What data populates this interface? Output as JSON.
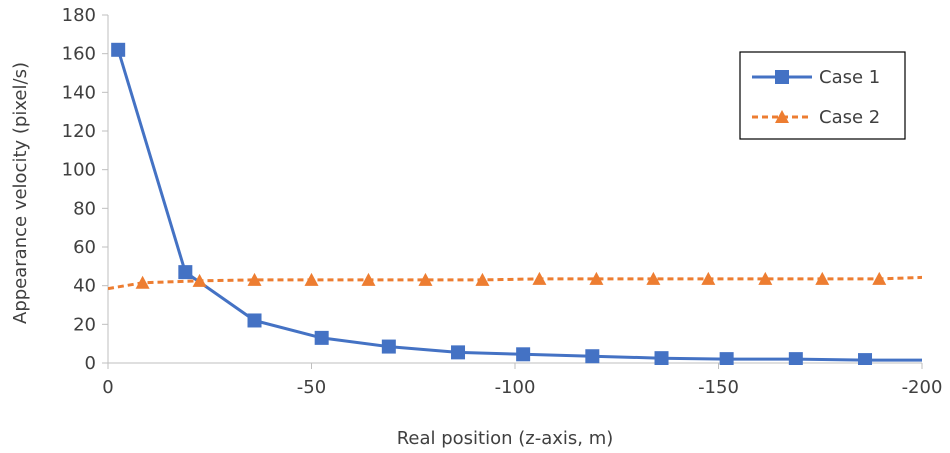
{
  "chart_data": {
    "type": "line",
    "xlabel": "Real position (z-axis, m)",
    "ylabel": "Appearance velocity (pixel/s)",
    "xlim": [
      0,
      -200
    ],
    "ylim": [
      0,
      180
    ],
    "x_ticks": [
      0,
      -50,
      -100,
      -150,
      -200
    ],
    "y_ticks": [
      0,
      20,
      40,
      60,
      80,
      100,
      120,
      140,
      160,
      180
    ],
    "x_tick_labels": [
      "0",
      "-50",
      "-100",
      "-150",
      "-200"
    ],
    "y_tick_labels": [
      "0",
      "20",
      "40",
      "60",
      "80",
      "100",
      "120",
      "140",
      "160",
      "180"
    ],
    "grid": false,
    "legend_position": "top-right",
    "series": [
      {
        "name": "Case 1",
        "color": "#4472C4",
        "line_style": "solid",
        "marker": "square",
        "x": [
          -2.5,
          -19,
          -36,
          -52.5,
          -69,
          -86,
          -102,
          -119,
          -136,
          -152,
          -169,
          -186,
          -203
        ],
        "y": [
          162,
          47,
          22,
          13,
          8.5,
          5.5,
          4.5,
          3.5,
          2.5,
          2,
          2,
          1.5,
          1.5
        ],
        "marker_count": 12
      },
      {
        "name": "Case 2",
        "color": "#ED7D31",
        "line_style": "dashed",
        "marker": "triangle",
        "x": [
          0,
          -8.5,
          -22.5,
          -36,
          -50,
          -64,
          -78,
          -92,
          -106,
          -120,
          -134,
          -147.5,
          -161.5,
          -175.5,
          -189.5,
          -203
        ],
        "y": [
          38.5,
          41.5,
          42.5,
          43,
          43,
          43,
          43,
          43,
          43.5,
          43.5,
          43.5,
          43.5,
          43.5,
          43.5,
          43.5,
          44.5
        ],
        "marker_start": 1,
        "marker_end": 14
      }
    ]
  }
}
